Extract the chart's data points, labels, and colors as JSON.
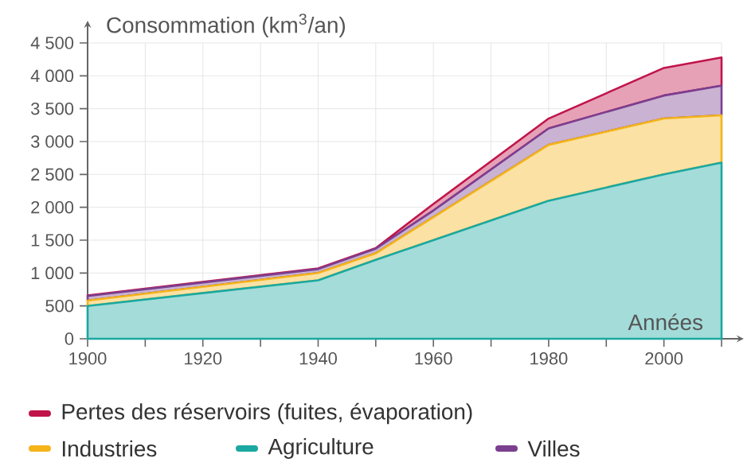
{
  "chart_data": {
    "type": "area",
    "stacked": true,
    "ylabel": "Consommation (km$^{3}$/an)",
    "xlabel": "Années",
    "x": [
      1900,
      1940,
      1950,
      1960,
      1980,
      2000,
      2010
    ],
    "series": [
      {
        "name": "Agriculture",
        "color": "#1aa8a0",
        "values": [
          500,
          890,
          1200,
          1500,
          2100,
          2500,
          2680
        ]
      },
      {
        "name": "Industries",
        "color": "#f4b41a",
        "values": [
          80,
          110,
          100,
          350,
          850,
          850,
          720
        ]
      },
      {
        "name": "Villes",
        "color": "#7b3f8f",
        "values": [
          70,
          60,
          70,
          100,
          250,
          350,
          450
        ]
      },
      {
        "name": "Pertes des réservoirs (fuites, évaporation)",
        "color": "#c0154a",
        "values": [
          10,
          10,
          10,
          100,
          150,
          420,
          430
        ]
      }
    ],
    "xlim": [
      1900,
      2010
    ],
    "ylim": [
      0,
      4500
    ],
    "xticks": [
      1900,
      {
        "value": 1910,
        "label": null
      },
      1920,
      {
        "value": 1930,
        "label": null
      },
      1940,
      {
        "value": 1950,
        "label": null
      },
      1960,
      {
        "value": 1970,
        "label": null
      },
      1980,
      {
        "value": 1990,
        "label": null
      },
      2000,
      {
        "value": 2010,
        "label": null
      }
    ],
    "yticks": [
      0,
      500,
      {
        "value": 1000,
        "label": "1 000"
      },
      {
        "value": 1500,
        "label": "1 500"
      },
      {
        "value": 2000,
        "label": "2 000"
      },
      {
        "value": 2500,
        "label": "2 500"
      },
      {
        "value": 3000,
        "label": "3 000"
      },
      {
        "value": 3500,
        "label": "3 500"
      },
      {
        "value": 4000,
        "label": "4 000"
      },
      {
        "value": 4500,
        "label": "4 500"
      }
    ],
    "grid": true,
    "legend": "bottom"
  }
}
